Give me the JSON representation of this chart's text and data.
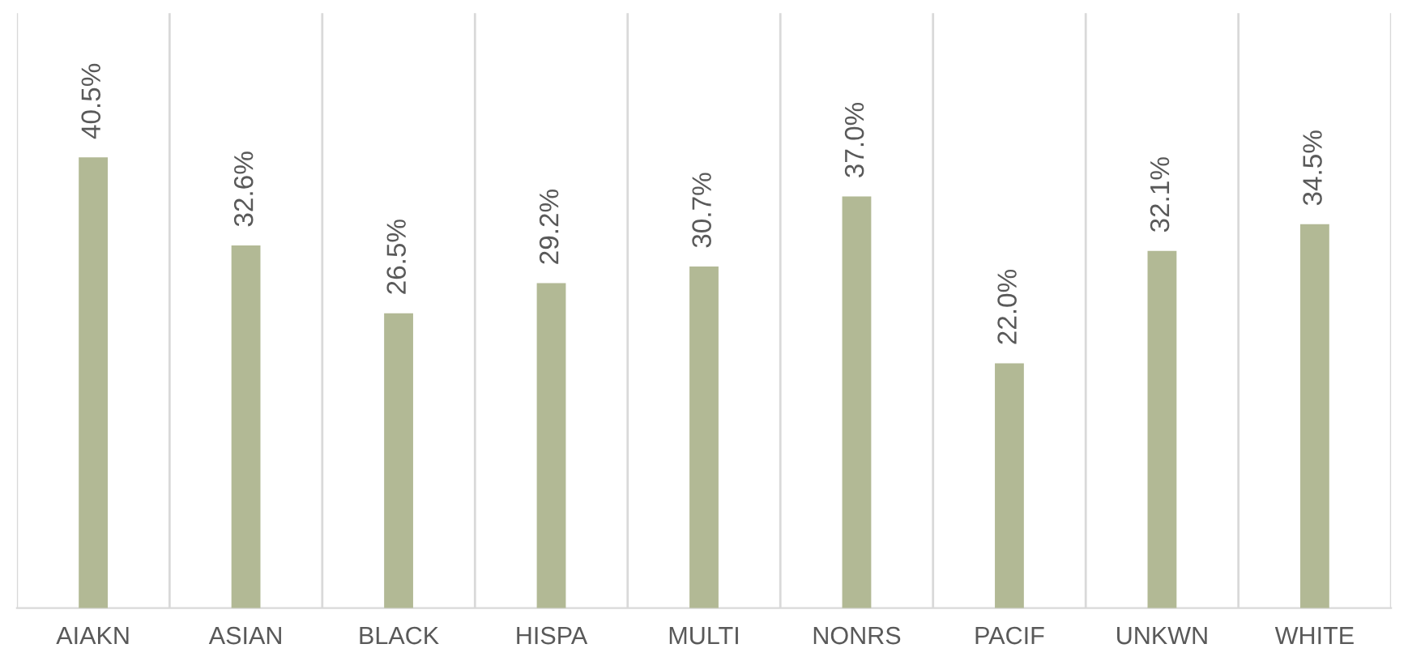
{
  "chart_data": {
    "type": "bar",
    "categories": [
      "AIAKN",
      "ASIAN",
      "BLACK",
      "HISPA",
      "MULTI",
      "NONRS",
      "PACIF",
      "UNKWN",
      "WHITE"
    ],
    "values": [
      40.5,
      32.6,
      26.5,
      29.2,
      30.7,
      37.0,
      22.0,
      32.1,
      34.5
    ],
    "value_labels": [
      "40.5%",
      "32.6%",
      "26.5%",
      "29.2%",
      "30.7%",
      "37.0%",
      "22.0%",
      "32.1%",
      "34.5%"
    ],
    "color": "#b2b995",
    "grid": "x"
  }
}
